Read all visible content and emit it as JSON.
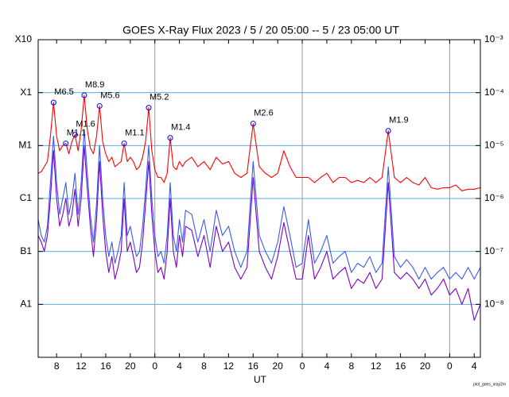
{
  "chart_data": {
    "type": "line",
    "title": "GOES X-Ray Flux   2023  /  5  /  20   05:00 --  5  /  23   05:00   UT",
    "xlabel": "UT",
    "footnote": "plot_goes_xray2m",
    "log_scale": true,
    "grid": true,
    "xlim": [
      "2023-05-20T05:00Z",
      "2023-05-23T05:00Z"
    ],
    "xticks": [
      {
        "value": "2023-05-20T08:00Z",
        "label": "8"
      },
      {
        "value": "2023-05-20T12:00Z",
        "label": "12"
      },
      {
        "value": "2023-05-20T16:00Z",
        "label": "16"
      },
      {
        "value": "2023-05-20T20:00Z",
        "label": "20"
      },
      {
        "value": "2023-05-21T00:00Z",
        "label": "0"
      },
      {
        "value": "2023-05-21T04:00Z",
        "label": "4"
      },
      {
        "value": "2023-05-21T08:00Z",
        "label": "8"
      },
      {
        "value": "2023-05-21T12:00Z",
        "label": "12"
      },
      {
        "value": "2023-05-21T16:00Z",
        "label": "16"
      },
      {
        "value": "2023-05-21T20:00Z",
        "label": "20"
      },
      {
        "value": "2023-05-22T00:00Z",
        "label": "0"
      },
      {
        "value": "2023-05-22T04:00Z",
        "label": "4"
      },
      {
        "value": "2023-05-22T08:00Z",
        "label": "8"
      },
      {
        "value": "2023-05-22T12:00Z",
        "label": "12"
      },
      {
        "value": "2023-05-22T16:00Z",
        "label": "16"
      },
      {
        "value": "2023-05-22T20:00Z",
        "label": "20"
      },
      {
        "value": "2023-05-23T00:00Z",
        "label": "0"
      },
      {
        "value": "2023-05-23T04:00Z",
        "label": "4"
      }
    ],
    "ylim": [
      1e-09,
      0.001
    ],
    "yticks": [
      {
        "value": 0.001,
        "label": "X10"
      },
      {
        "value": 0.0001,
        "label": "X1"
      },
      {
        "value": 1e-05,
        "label": "M1"
      },
      {
        "value": 1e-06,
        "label": "C1"
      },
      {
        "value": 1e-07,
        "label": "B1"
      },
      {
        "value": 1e-08,
        "label": "A1"
      }
    ],
    "y2lim": [
      1e-09,
      0.001
    ],
    "y2ticks": [
      {
        "value": 0.001,
        "label": "10⁻³"
      },
      {
        "value": 0.0001,
        "label": "10⁻⁴"
      },
      {
        "value": 1e-05,
        "label": "10⁻⁵"
      },
      {
        "value": 1e-06,
        "label": "10⁻⁶"
      },
      {
        "value": 1e-07,
        "label": "10⁻⁷"
      },
      {
        "value": 1e-08,
        "label": "10⁻⁸"
      }
    ],
    "x": [
      "2023-05-20T05:00Z",
      "2023-05-20T05:30Z",
      "2023-05-20T06:00Z",
      "2023-05-20T06:30Z",
      "2023-05-20T07:00Z",
      "2023-05-20T07:30Z",
      "2023-05-20T08:00Z",
      "2023-05-20T08:30Z",
      "2023-05-20T09:00Z",
      "2023-05-20T09:30Z",
      "2023-05-20T10:00Z",
      "2023-05-20T10:30Z",
      "2023-05-20T11:00Z",
      "2023-05-20T11:30Z",
      "2023-05-20T12:00Z",
      "2023-05-20T12:30Z",
      "2023-05-20T13:00Z",
      "2023-05-20T13:30Z",
      "2023-05-20T14:00Z",
      "2023-05-20T14:30Z",
      "2023-05-20T15:00Z",
      "2023-05-20T15:30Z",
      "2023-05-20T16:00Z",
      "2023-05-20T16:30Z",
      "2023-05-20T17:00Z",
      "2023-05-20T17:30Z",
      "2023-05-20T18:00Z",
      "2023-05-20T18:30Z",
      "2023-05-20T19:00Z",
      "2023-05-20T19:30Z",
      "2023-05-20T20:00Z",
      "2023-05-20T20:30Z",
      "2023-05-20T21:00Z",
      "2023-05-20T21:30Z",
      "2023-05-20T22:00Z",
      "2023-05-20T22:30Z",
      "2023-05-20T23:00Z",
      "2023-05-20T23:30Z",
      "2023-05-21T00:00Z",
      "2023-05-21T00:30Z",
      "2023-05-21T01:00Z",
      "2023-05-21T01:30Z",
      "2023-05-21T02:00Z",
      "2023-05-21T02:30Z",
      "2023-05-21T03:00Z",
      "2023-05-21T03:30Z",
      "2023-05-21T04:00Z",
      "2023-05-21T04:30Z",
      "2023-05-21T05:00Z",
      "2023-05-21T06:00Z",
      "2023-05-21T07:00Z",
      "2023-05-21T08:00Z",
      "2023-05-21T09:00Z",
      "2023-05-21T10:00Z",
      "2023-05-21T11:00Z",
      "2023-05-21T12:00Z",
      "2023-05-21T13:00Z",
      "2023-05-21T14:00Z",
      "2023-05-21T15:00Z",
      "2023-05-21T16:00Z",
      "2023-05-21T17:00Z",
      "2023-05-21T18:00Z",
      "2023-05-21T19:00Z",
      "2023-05-21T20:00Z",
      "2023-05-21T21:00Z",
      "2023-05-21T22:00Z",
      "2023-05-21T23:00Z",
      "2023-05-22T00:00Z",
      "2023-05-22T01:00Z",
      "2023-05-22T02:00Z",
      "2023-05-22T03:00Z",
      "2023-05-22T04:00Z",
      "2023-05-22T05:00Z",
      "2023-05-22T06:00Z",
      "2023-05-22T07:00Z",
      "2023-05-22T08:00Z",
      "2023-05-22T09:00Z",
      "2023-05-22T10:00Z",
      "2023-05-22T11:00Z",
      "2023-05-22T12:00Z",
      "2023-05-22T13:00Z",
      "2023-05-22T14:00Z",
      "2023-05-22T15:00Z",
      "2023-05-22T16:00Z",
      "2023-05-22T17:00Z",
      "2023-05-22T18:00Z",
      "2023-05-22T19:00Z",
      "2023-05-22T20:00Z",
      "2023-05-22T21:00Z",
      "2023-05-22T22:00Z",
      "2023-05-22T23:00Z",
      "2023-05-23T00:00Z",
      "2023-05-23T01:00Z",
      "2023-05-23T02:00Z",
      "2023-05-23T03:00Z",
      "2023-05-23T04:00Z",
      "2023-05-23T05:00Z"
    ],
    "series": [
      {
        "color": "#7b00c8",
        "values": [
          2e-07,
          1.5e-07,
          1e-07,
          2e-07,
          1e-06,
          8e-06,
          1e-06,
          3e-07,
          5e-07,
          1e-06,
          3e-07,
          5e-07,
          1.5e-06,
          3e-07,
          1e-06,
          1e-05,
          1.5e-06,
          3e-07,
          8e-08,
          4e-07,
          5e-06,
          5e-07,
          1e-07,
          4e-08,
          8e-08,
          3e-08,
          5e-08,
          1e-07,
          1e-06,
          1e-07,
          1.5e-07,
          8e-08,
          4e-08,
          5e-08,
          1.5e-07,
          8e-07,
          5e-06,
          5e-07,
          1e-07,
          4e-08,
          5e-08,
          3e-08,
          1e-07,
          1e-06,
          1e-07,
          5e-08,
          2e-07,
          8e-08,
          3e-07,
          2.5e-07,
          8e-08,
          2e-07,
          5e-08,
          3e-07,
          1e-07,
          1.5e-07,
          5e-08,
          3e-08,
          5e-08,
          2.5e-06,
          1e-07,
          5e-08,
          3e-08,
          8e-08,
          3.5e-07,
          1e-07,
          3e-08,
          3e-08,
          2e-07,
          3e-08,
          5e-08,
          1e-07,
          3e-08,
          4e-08,
          5e-08,
          2e-08,
          3e-08,
          2.5e-08,
          4e-08,
          2e-08,
          3e-08,
          2e-06,
          4e-08,
          3e-08,
          4e-08,
          3e-08,
          2e-08,
          3e-08,
          1.5e-08,
          2e-08,
          3e-08,
          1.5e-08,
          2e-08,
          1e-08,
          2e-08,
          5e-09,
          1e-08
        ]
      },
      {
        "color": "#3c5af0",
        "values": [
          4e-07,
          2e-07,
          1.5e-07,
          3e-07,
          2e-06,
          1.5e-05,
          2e-06,
          5e-07,
          1e-06,
          2e-06,
          5e-07,
          1e-06,
          3e-06,
          5e-07,
          2e-06,
          2e-05,
          3e-06,
          5e-07,
          1.5e-07,
          8e-07,
          1e-05,
          1e-06,
          2e-07,
          8e-08,
          1.5e-07,
          6e-08,
          1e-07,
          2e-07,
          2e-06,
          2e-07,
          3e-07,
          1.5e-07,
          8e-08,
          1e-07,
          3e-07,
          1.5e-06,
          1e-05,
          1e-06,
          2e-07,
          8e-08,
          1e-07,
          6e-08,
          2e-07,
          2e-06,
          2e-07,
          1e-07,
          4e-07,
          1.5e-07,
          6e-07,
          5e-07,
          1.5e-07,
          4e-07,
          1e-07,
          6e-07,
          2e-07,
          3e-07,
          1e-07,
          5e-08,
          1e-07,
          5e-06,
          2e-07,
          1e-07,
          6e-08,
          1.5e-07,
          7e-07,
          2e-07,
          5e-08,
          6e-08,
          4e-07,
          6e-08,
          1e-07,
          2e-07,
          6e-08,
          8e-08,
          1e-07,
          4e-08,
          6e-08,
          5e-08,
          8e-08,
          4e-08,
          6e-08,
          4e-06,
          8e-08,
          5e-08,
          7e-08,
          5e-08,
          3e-08,
          5e-08,
          3e-08,
          4e-08,
          5e-08,
          3e-08,
          4e-08,
          3e-08,
          5e-08,
          3e-08,
          5e-08
        ]
      },
      {
        "color": "#ff0000",
        "values": [
          3e-06,
          3.2e-06,
          4e-06,
          5e-06,
          1.5e-05,
          6.5e-05,
          1.5e-05,
          8e-06,
          1e-05,
          1.1e-05,
          7e-06,
          1.2e-05,
          1.6e-05,
          8e-06,
          2e-05,
          8.9e-05,
          2e-05,
          9e-06,
          7e-06,
          1.5e-05,
          5.6e-05,
          1.2e-05,
          7e-06,
          5e-06,
          6e-06,
          4e-06,
          4.5e-06,
          5e-06,
          1.1e-05,
          5e-06,
          6e-06,
          5e-06,
          3.5e-06,
          4e-06,
          6e-06,
          1.2e-05,
          5.2e-05,
          8e-06,
          3.5e-06,
          2.5e-06,
          2.5e-06,
          2e-06,
          3e-06,
          1.4e-05,
          4e-06,
          3.5e-06,
          5e-06,
          4e-06,
          5e-06,
          6e-06,
          4e-06,
          5e-06,
          3.5e-06,
          6e-06,
          4.5e-06,
          5e-06,
          3e-06,
          2.5e-06,
          3e-06,
          2.6e-05,
          4e-06,
          3e-06,
          2.5e-06,
          3e-06,
          8e-06,
          4e-06,
          2.5e-06,
          2.5e-06,
          2.5e-06,
          2e-06,
          2.5e-06,
          3e-06,
          2e-06,
          2.5e-06,
          2.5e-06,
          2e-06,
          2.2e-06,
          2e-06,
          2.5e-06,
          2e-06,
          2.5e-06,
          1.9e-05,
          2.5e-06,
          2e-06,
          2.5e-06,
          2e-06,
          1.8e-06,
          2.5e-06,
          1.6e-06,
          1.5e-06,
          1.6e-06,
          1.6e-06,
          1.8e-06,
          1.4e-06,
          1.5e-06,
          1.5e-06,
          1.6e-06
        ]
      }
    ],
    "annotations": [
      {
        "label": "M6.5",
        "x": "2023-05-20T07:30Z",
        "value": 6.5e-05
      },
      {
        "label": "M1.1",
        "x": "2023-05-20T09:30Z",
        "value": 1.1e-05
      },
      {
        "label": "M1.6",
        "x": "2023-05-20T11:00Z",
        "value": 1.6e-05
      },
      {
        "label": "M8.9",
        "x": "2023-05-20T12:30Z",
        "value": 8.9e-05
      },
      {
        "label": "M5.6",
        "x": "2023-05-20T15:00Z",
        "value": 5.6e-05
      },
      {
        "label": "M1.1",
        "x": "2023-05-20T19:00Z",
        "value": 1.1e-05
      },
      {
        "label": "M5.2",
        "x": "2023-05-20T23:00Z",
        "value": 5.2e-05
      },
      {
        "label": "M1.4",
        "x": "2023-05-21T02:30Z",
        "value": 1.4e-05
      },
      {
        "label": "M2.6",
        "x": "2023-05-21T16:00Z",
        "value": 2.6e-05
      },
      {
        "label": "M1.9",
        "x": "2023-05-22T14:00Z",
        "value": 1.9e-05
      }
    ]
  }
}
